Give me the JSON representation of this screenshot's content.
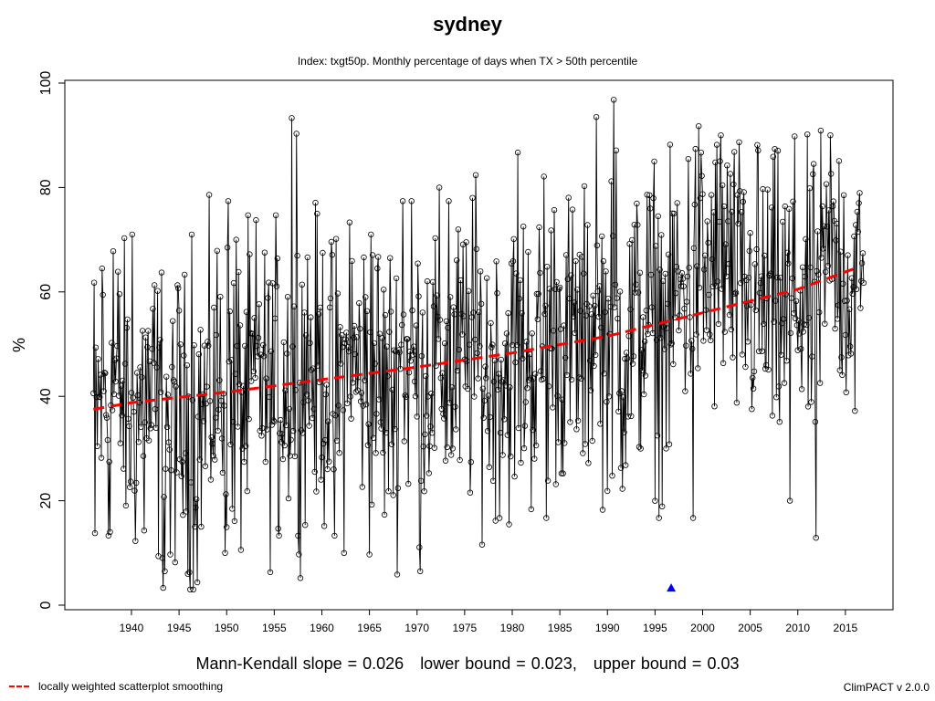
{
  "title": "sydney",
  "subtitle": "Index: txgt50p. Monthly percentage of days when TX > 50th percentile",
  "stats": {
    "slope_text": "Mann-Kendall slope = 0.026",
    "lower_text": "lower bound = 0.023,",
    "upper_text": "upper bound = 0.03"
  },
  "legend": {
    "label": "locally weighted scatterplot smoothing",
    "color": "#ff0000"
  },
  "version": "ClimPACT v 2.0.0",
  "colors": {
    "series": "#000000",
    "smooth": "#ff0000",
    "marker": "#0000ff"
  },
  "chart_data": {
    "type": "line",
    "title": "sydney",
    "subtitle": "Index: txgt50p. Monthly percentage of days when TX > 50th percentile",
    "xlabel": "",
    "ylabel": "%",
    "xlim": [
      1933,
      2020
    ],
    "ylim": [
      0,
      100
    ],
    "xticks": [
      1940,
      1945,
      1950,
      1955,
      1960,
      1965,
      1970,
      1975,
      1980,
      1985,
      1990,
      1995,
      2000,
      2005,
      2010,
      2015
    ],
    "yticks": [
      0,
      20,
      40,
      60,
      80,
      100
    ],
    "grid": false,
    "start_year": 1936,
    "end_year": 2016,
    "series": [
      {
        "name": "txgt50p",
        "points_per_year": 12,
        "yearly_means": [
          38,
          40,
          42,
          39,
          37,
          40,
          36,
          38,
          37,
          34,
          31,
          36,
          41,
          43,
          42,
          38,
          41,
          45,
          40,
          43,
          44,
          45,
          47,
          45,
          44,
          41,
          42,
          45,
          44,
          45,
          40,
          42,
          47,
          44,
          45,
          46,
          47,
          44,
          46,
          47,
          48,
          44,
          46,
          45,
          47,
          48,
          47,
          50,
          53,
          51,
          50,
          49,
          53,
          52,
          51,
          48,
          52,
          54,
          56,
          54,
          52,
          58,
          62,
          66,
          62,
          64,
          66,
          60,
          59,
          58,
          57,
          56,
          56,
          60,
          59,
          55,
          60,
          63,
          66,
          62,
          61
        ],
        "extremes": [
          {
            "x": 1936.2,
            "y": 13.8
          },
          {
            "x": 1936.9,
            "y": 64.5
          },
          {
            "x": 1937.6,
            "y": 13.3
          },
          {
            "x": 1938.1,
            "y": 67.8
          },
          {
            "x": 1939.8,
            "y": 22.6
          },
          {
            "x": 1940.1,
            "y": 71.0
          },
          {
            "x": 1941.3,
            "y": 14.3
          },
          {
            "x": 1942.4,
            "y": 61.3
          },
          {
            "x": 1943.3,
            "y": 3.3
          },
          {
            "x": 1943.5,
            "y": 6.5
          },
          {
            "x": 1944.1,
            "y": 9.7
          },
          {
            "x": 1946.3,
            "y": 71.0
          },
          {
            "x": 1949.8,
            "y": 10.0
          },
          {
            "x": 1950.2,
            "y": 77.4
          },
          {
            "x": 1950.8,
            "y": 16.1
          },
          {
            "x": 1951.0,
            "y": 70.0
          },
          {
            "x": 1955.5,
            "y": 13.3
          },
          {
            "x": 1956.8,
            "y": 93.3
          },
          {
            "x": 1957.3,
            "y": 90.3
          },
          {
            "x": 1957.5,
            "y": 13.3
          },
          {
            "x": 1961.3,
            "y": 13.3
          },
          {
            "x": 1962.9,
            "y": 73.3
          },
          {
            "x": 1965.0,
            "y": 9.7
          },
          {
            "x": 1965.2,
            "y": 71.0
          },
          {
            "x": 1968.5,
            "y": 77.4
          },
          {
            "x": 1969.4,
            "y": 77.4
          },
          {
            "x": 1970.3,
            "y": 6.5
          },
          {
            "x": 1973.3,
            "y": 77.4
          },
          {
            "x": 1975.8,
            "y": 78.0
          },
          {
            "x": 1978.7,
            "y": 16.7
          },
          {
            "x": 1980.6,
            "y": 86.7
          },
          {
            "x": 1983.3,
            "y": 82.1
          },
          {
            "x": 1983.6,
            "y": 16.7
          },
          {
            "x": 1988.8,
            "y": 93.5
          },
          {
            "x": 1990.7,
            "y": 96.8
          },
          {
            "x": 1990.9,
            "y": 87.1
          },
          {
            "x": 1995.4,
            "y": 16.7
          },
          {
            "x": 1997.0,
            "y": 75.0
          },
          {
            "x": 1999.0,
            "y": 16.7
          },
          {
            "x": 2001.9,
            "y": 90.0
          },
          {
            "x": 2005.8,
            "y": 87.1
          },
          {
            "x": 2009.2,
            "y": 20.0
          },
          {
            "x": 2011.9,
            "y": 12.9
          },
          {
            "x": 2013.4,
            "y": 90.0
          }
        ]
      },
      {
        "name": "locally weighted scatterplot smoothing",
        "x": [
          1936,
          1940,
          1950,
          1960,
          1970,
          1980,
          1990,
          2000,
          2010,
          2016
        ],
        "y": [
          37.5,
          38.8,
          40.8,
          43.2,
          45.6,
          48.3,
          51.5,
          56.0,
          60.5,
          64.5
        ]
      }
    ],
    "markers": [
      {
        "x": 1996.7,
        "y": 3.3,
        "shape": "triangle",
        "color": "#0000ff"
      }
    ]
  }
}
